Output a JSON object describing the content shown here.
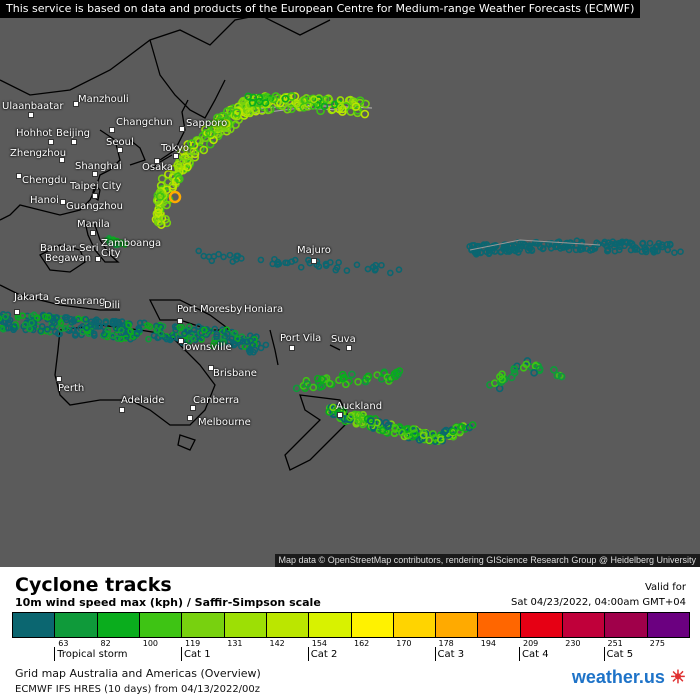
{
  "banner": "This service is based on data and products of the European Centre for Medium-range Weather Forecasts (ECMWF)",
  "attribution": "Map data © OpenStreetMap contributors, rendering GIScience Research Group @ Heidelberg University",
  "map": {
    "background": "#5b5b5b",
    "cities": [
      "Ulaanbaatar",
      "Manzhouli",
      "Changchun",
      "Sapporo",
      "Hohhot",
      "Beijing",
      "Seoul",
      "Tokyo",
      "Osaka",
      "Zhengzhou",
      "Shanghai",
      "Chengdu",
      "Taipei City",
      "Hanoi",
      "Guangzhou",
      "Manila",
      "Zamboanga",
      "City",
      "Bandar Seri",
      "Begawan",
      "Majuro",
      "Jakarta",
      "Semarang",
      "Dili",
      "Port Moresby",
      "Honiara",
      "Townsville",
      "Port Vila",
      "Suva",
      "Brisbane",
      "Perth",
      "Adelaide",
      "Canberra",
      "Melbourne",
      "Auckland"
    ]
  },
  "legend": {
    "title": "Cyclone tracks",
    "subtitle": "10m wind speed max (kph) / Saffir-Simpson scale",
    "valid_label": "Valid for",
    "valid_time": "Sat 04/23/2022, 04:00am GMT+04",
    "colors": [
      "#0b6670",
      "#0f9a3a",
      "#0aad1d",
      "#3ec414",
      "#78d10f",
      "#9ddf05",
      "#bbe600",
      "#d8f200",
      "#fff200",
      "#ffd400",
      "#ffaa00",
      "#ff6600",
      "#e60014",
      "#c0003a",
      "#a0004a",
      "#6b0080"
    ],
    "ticks": [
      "63",
      "82",
      "100",
      "119",
      "131",
      "142",
      "154",
      "162",
      "170",
      "178",
      "194",
      "209",
      "230",
      "251",
      "275"
    ],
    "categories": [
      "Tropical storm",
      "Cat 1",
      "Cat 2",
      "Cat 3",
      "Cat 4",
      "Cat 5"
    ],
    "grid": "Grid map Australia and Americas (Overview)",
    "model": "ECMWF IFS HRES (10 days) from  04/13/2022/00z",
    "logo_main": "weather.us",
    "logo_mark": "☀"
  }
}
